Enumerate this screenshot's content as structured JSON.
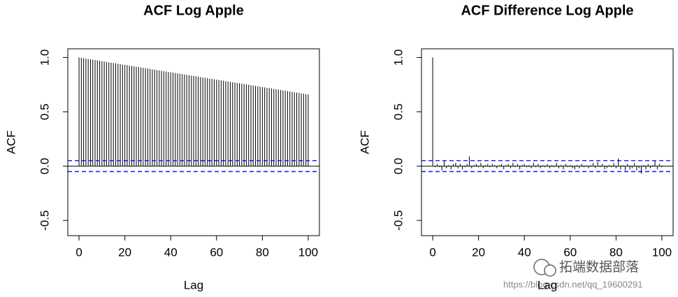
{
  "chart_data": [
    {
      "type": "stem",
      "title": "ACF Log Apple",
      "xlabel": "Lag",
      "ylabel": "ACF",
      "x": [
        0,
        1,
        2,
        3,
        4,
        5,
        6,
        7,
        8,
        9,
        10,
        11,
        12,
        13,
        14,
        15,
        16,
        17,
        18,
        19,
        20,
        21,
        22,
        23,
        24,
        25,
        26,
        27,
        28,
        29,
        30,
        31,
        32,
        33,
        34,
        35,
        36,
        37,
        38,
        39,
        40,
        41,
        42,
        43,
        44,
        45,
        46,
        47,
        48,
        49,
        50,
        51,
        52,
        53,
        54,
        55,
        56,
        57,
        58,
        59,
        60,
        61,
        62,
        63,
        64,
        65,
        66,
        67,
        68,
        69,
        70,
        71,
        72,
        73,
        74,
        75,
        76,
        77,
        78,
        79,
        80,
        81,
        82,
        83,
        84,
        85,
        86,
        87,
        88,
        89,
        90,
        91,
        92,
        93,
        94,
        95,
        96,
        97,
        98,
        99,
        100
      ],
      "values": [
        1.0,
        0.997,
        0.993,
        0.99,
        0.986,
        0.983,
        0.98,
        0.976,
        0.973,
        0.969,
        0.966,
        0.963,
        0.959,
        0.956,
        0.952,
        0.949,
        0.946,
        0.942,
        0.939,
        0.935,
        0.932,
        0.929,
        0.925,
        0.922,
        0.918,
        0.915,
        0.912,
        0.908,
        0.905,
        0.901,
        0.898,
        0.895,
        0.891,
        0.888,
        0.884,
        0.881,
        0.878,
        0.874,
        0.871,
        0.867,
        0.864,
        0.861,
        0.857,
        0.854,
        0.85,
        0.847,
        0.844,
        0.84,
        0.837,
        0.833,
        0.83,
        0.827,
        0.823,
        0.82,
        0.816,
        0.813,
        0.81,
        0.806,
        0.803,
        0.799,
        0.796,
        0.793,
        0.789,
        0.786,
        0.782,
        0.779,
        0.776,
        0.772,
        0.769,
        0.765,
        0.762,
        0.759,
        0.755,
        0.752,
        0.748,
        0.745,
        0.742,
        0.738,
        0.735,
        0.731,
        0.728,
        0.725,
        0.721,
        0.718,
        0.714,
        0.711,
        0.708,
        0.704,
        0.701,
        0.697,
        0.694,
        0.691,
        0.687,
        0.684,
        0.68,
        0.677,
        0.674,
        0.67,
        0.667,
        0.663,
        0.66
      ],
      "color": "#000000",
      "conf_limits": [
        -0.05,
        0.05
      ],
      "conf_color": "#0000ff",
      "xlim": [
        -4.9,
        104.9
      ],
      "ylim": [
        -0.64,
        1.08
      ],
      "xticks": [
        0,
        20,
        40,
        60,
        80,
        100
      ],
      "yticks": [
        {
          "value": -0.5,
          "label": "-0.5"
        },
        {
          "value": 0,
          "label": "0.0"
        },
        {
          "value": 0.5,
          "label": "0.5"
        },
        {
          "value": 1,
          "label": "1.0"
        }
      ]
    },
    {
      "type": "stem",
      "title": "ACF Difference Log Apple",
      "xlabel": "Lag",
      "ylabel": "ACF",
      "x": [
        0,
        1,
        2,
        3,
        4,
        5,
        6,
        7,
        8,
        9,
        10,
        11,
        12,
        13,
        14,
        15,
        16,
        17,
        18,
        19,
        20,
        21,
        22,
        23,
        24,
        25,
        26,
        27,
        28,
        29,
        30,
        31,
        32,
        33,
        34,
        35,
        36,
        37,
        38,
        39,
        40,
        41,
        42,
        43,
        44,
        45,
        46,
        47,
        48,
        49,
        50,
        51,
        52,
        53,
        54,
        55,
        56,
        57,
        58,
        59,
        60,
        61,
        62,
        63,
        64,
        65,
        66,
        67,
        68,
        69,
        70,
        71,
        72,
        73,
        74,
        75,
        76,
        77,
        78,
        79,
        80,
        81,
        82,
        83,
        84,
        85,
        86,
        87,
        88,
        89,
        90,
        91,
        92,
        93,
        94,
        95,
        96,
        97,
        98,
        99,
        100
      ],
      "values": [
        1.0,
        -0.01,
        0.02,
        -0.01,
        -0.04,
        0.05,
        -0.02,
        0.01,
        -0.03,
        0.02,
        0.03,
        -0.02,
        0.02,
        -0.03,
        -0.01,
        0.02,
        0.09,
        -0.02,
        0.01,
        0.02,
        -0.01,
        0.03,
        -0.02,
        0.01,
        0.02,
        -0.01,
        0.02,
        0.01,
        -0.02,
        0.01,
        0.02,
        -0.03,
        0.01,
        0.02,
        -0.02,
        0.03,
        -0.01,
        0.02,
        -0.03,
        0.01,
        0.02,
        -0.01,
        0.01,
        -0.02,
        0.03,
        -0.01,
        0.02,
        -0.02,
        0.01,
        -0.01,
        0.02,
        -0.02,
        0.01,
        -0.01,
        0.03,
        -0.02,
        0.01,
        -0.03,
        0.02,
        -0.01,
        0.01,
        -0.02,
        -0.03,
        0.01,
        -0.02,
        0.02,
        -0.01,
        0.01,
        -0.02,
        0.01,
        0.03,
        -0.02,
        0.04,
        -0.01,
        0.02,
        -0.03,
        -0.02,
        0.01,
        -0.01,
        0.03,
        -0.02,
        0.07,
        -0.03,
        0.01,
        -0.04,
        0.02,
        -0.03,
        -0.02,
        0.03,
        -0.04,
        -0.02,
        -0.07,
        0.01,
        -0.03,
        0.02,
        -0.02,
        0.01,
        0.05,
        -0.03,
        0.02,
        -0.01
      ],
      "color": "#000000",
      "conf_limits": [
        -0.05,
        0.05
      ],
      "conf_color": "#0000ff",
      "xlim": [
        -4.9,
        104.9
      ],
      "ylim": [
        -0.64,
        1.08
      ],
      "xticks": [
        0,
        20,
        40,
        60,
        80,
        100
      ],
      "yticks": [
        {
          "value": -0.5,
          "label": "-0.5"
        },
        {
          "value": 0,
          "label": "0.0"
        },
        {
          "value": 0.5,
          "label": "0.5"
        },
        {
          "value": 1,
          "label": "1.0"
        }
      ]
    }
  ],
  "watermark": {
    "brand": "拓端数据部落",
    "url": "https://blog.csdn.net/qq_19600291"
  }
}
